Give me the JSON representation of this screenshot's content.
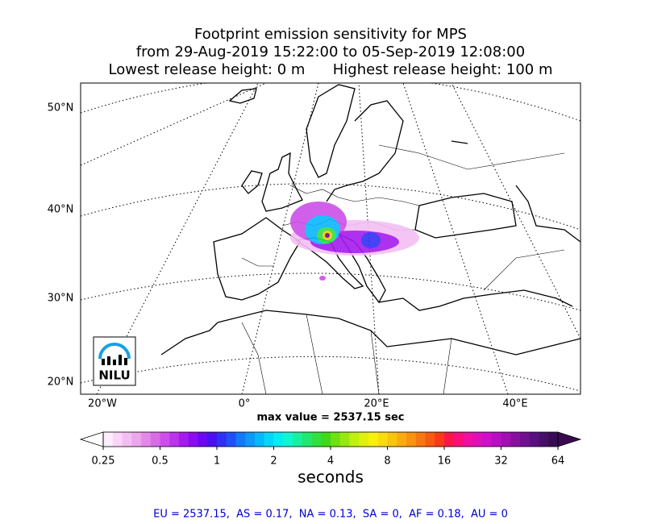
{
  "title_lines": [
    "Footprint emission sensitivity for MPS",
    "from 29-Aug-2019 15:22:00 to 05-Sep-2019 12:08:00",
    "Lowest release height: 0 m      Highest release height: 100 m"
  ],
  "lat_labels": [
    "50°N",
    "40°N",
    "30°N",
    "20°N"
  ],
  "lon_labels": [
    "20°W",
    "0°",
    "20°E",
    "40°E"
  ],
  "logo_text": "NILU",
  "max_value_text": "max value = 2537.15 sec",
  "colorbar": {
    "ticks": [
      0.25,
      0.5,
      1,
      2,
      4,
      8,
      16,
      32,
      64
    ],
    "log": true,
    "label": "seconds",
    "colors": [
      "#fdeefd",
      "#f9d6f9",
      "#f3bff3",
      "#eca6ee",
      "#e38ae9",
      "#d86ce6",
      "#cc4fe8",
      "#bb33ea",
      "#a51bee",
      "#8a0cf0",
      "#6a08f2",
      "#4a10f0",
      "#3030f5",
      "#2050f8",
      "#1478fa",
      "#0c98fc",
      "#08b8fc",
      "#06d6f8",
      "#08ecf0",
      "#10f4d0",
      "#18f0a0",
      "#20e870",
      "#30e040",
      "#40d818",
      "#70e010",
      "#98e810",
      "#c0f010",
      "#e0f010",
      "#f8f010",
      "#f8dc10",
      "#f8c410",
      "#f8ac10",
      "#f89410",
      "#f87810",
      "#f85a10",
      "#f83a18",
      "#f81848",
      "#f8107a",
      "#f010a0",
      "#e010b8",
      "#d010c8",
      "#b810c0",
      "#a010b0",
      "#8810a0",
      "#701090",
      "#581080",
      "#461068",
      "#380c54"
    ],
    "under_color": "#ffffff",
    "over_color": "#3a0a50"
  },
  "footer": "EU = 2537.15,  AS = 0.17,  NA = 0.13,  SA = 0,  AF = 0.18,  AU = 0"
}
